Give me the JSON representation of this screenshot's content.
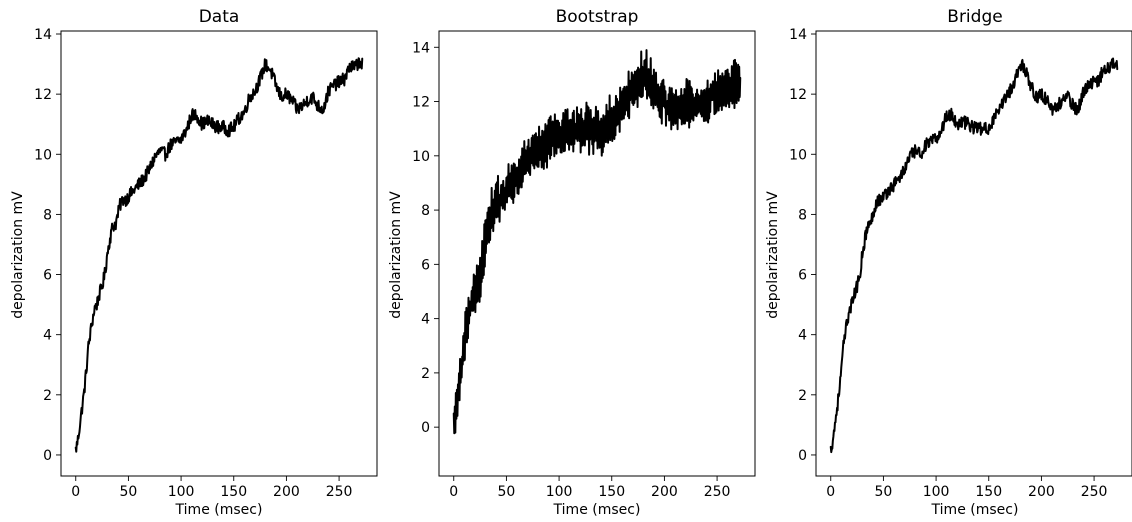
{
  "chart_data": [
    {
      "type": "line",
      "title": "Data",
      "xlabel": "Time (msec)",
      "ylabel": "depolarization mV",
      "xlim": [
        -14,
        286
      ],
      "ylim": [
        -0.7,
        14.1
      ],
      "xticks": [
        0,
        50,
        100,
        150,
        200,
        250
      ],
      "yticks": [
        0,
        2,
        4,
        6,
        8,
        10,
        12,
        14
      ],
      "grid": false,
      "color": "#000000",
      "noise": 0.22,
      "band": 0,
      "series": [
        {
          "x": [
            0,
            2,
            5,
            8,
            10,
            12,
            15,
            18,
            20,
            22,
            25,
            28,
            30,
            32,
            35,
            38,
            40,
            42,
            45,
            48,
            50,
            55,
            60,
            65,
            70,
            75,
            80,
            85,
            90,
            95,
            100,
            105,
            110,
            115,
            120,
            125,
            130,
            135,
            140,
            145,
            150,
            155,
            160,
            165,
            170,
            175,
            180,
            185,
            190,
            195,
            200,
            205,
            210,
            215,
            220,
            225,
            230,
            235,
            240,
            245,
            250,
            255,
            260,
            265,
            270,
            272
          ],
          "y": [
            0.15,
            0.5,
            1.3,
            2.1,
            2.8,
            3.6,
            4.3,
            4.9,
            5.0,
            5.3,
            5.6,
            6.1,
            6.7,
            7.1,
            7.6,
            7.7,
            8.0,
            8.3,
            8.5,
            8.5,
            8.6,
            8.8,
            9.0,
            9.2,
            9.5,
            9.9,
            10.1,
            10.0,
            10.3,
            10.4,
            10.5,
            10.8,
            11.3,
            11.3,
            11.0,
            11.1,
            11.0,
            10.9,
            10.9,
            10.8,
            10.9,
            11.2,
            11.4,
            11.9,
            12.1,
            12.5,
            13.0,
            12.8,
            12.3,
            11.9,
            12.0,
            11.8,
            11.5,
            11.6,
            11.8,
            11.9,
            11.6,
            11.5,
            12.1,
            12.3,
            12.4,
            12.5,
            12.9,
            12.9,
            13.1,
            13.0
          ]
        }
      ]
    },
    {
      "type": "line",
      "title": "Bootstrap",
      "xlabel": "Time (msec)",
      "ylabel": "depolarization mV",
      "xlim": [
        -14,
        286
      ],
      "ylim": [
        -1.8,
        14.6
      ],
      "xticks": [
        0,
        50,
        100,
        150,
        200,
        250
      ],
      "yticks": [
        0,
        2,
        4,
        6,
        8,
        10,
        12,
        14
      ],
      "grid": false,
      "color": "#000000",
      "noise": 0.3,
      "band": 0.75,
      "series": [
        {
          "x": [
            0,
            2,
            5,
            8,
            10,
            12,
            15,
            18,
            20,
            22,
            25,
            28,
            30,
            32,
            35,
            38,
            40,
            42,
            45,
            48,
            50,
            55,
            60,
            65,
            70,
            75,
            80,
            85,
            90,
            95,
            100,
            105,
            110,
            115,
            120,
            125,
            130,
            135,
            140,
            145,
            150,
            155,
            160,
            165,
            170,
            175,
            180,
            185,
            190,
            195,
            200,
            205,
            210,
            215,
            220,
            225,
            230,
            235,
            240,
            245,
            250,
            255,
            260,
            265,
            270,
            272
          ],
          "y": [
            0.0,
            0.6,
            1.5,
            2.3,
            3.0,
            3.6,
            4.3,
            4.8,
            5.0,
            5.3,
            5.7,
            6.2,
            6.8,
            7.3,
            7.8,
            8.0,
            8.2,
            8.4,
            8.5,
            8.6,
            8.7,
            8.9,
            9.2,
            9.5,
            9.8,
            10.1,
            10.2,
            10.2,
            10.5,
            10.7,
            10.8,
            10.9,
            11.0,
            11.1,
            11.0,
            11.1,
            11.0,
            11.0,
            11.0,
            11.2,
            11.3,
            11.5,
            11.9,
            12.2,
            12.5,
            12.7,
            13.0,
            12.8,
            12.4,
            12.1,
            12.0,
            11.9,
            11.7,
            11.8,
            11.9,
            11.9,
            11.9,
            11.8,
            12.0,
            12.1,
            12.2,
            12.3,
            12.5,
            12.6,
            12.8,
            12.8
          ]
        }
      ]
    },
    {
      "type": "line",
      "title": "Bridge",
      "xlabel": "Time (msec)",
      "ylabel": "depolarization mV",
      "xlim": [
        -14,
        286
      ],
      "ylim": [
        -0.7,
        14.1
      ],
      "xticks": [
        0,
        50,
        100,
        150,
        200,
        250
      ],
      "yticks": [
        0,
        2,
        4,
        6,
        8,
        10,
        12,
        14
      ],
      "grid": false,
      "color": "#000000",
      "noise": 0.22,
      "band": 0,
      "series": [
        {
          "x": [
            0,
            2,
            5,
            8,
            10,
            12,
            15,
            18,
            20,
            22,
            25,
            28,
            30,
            32,
            35,
            38,
            40,
            42,
            45,
            48,
            50,
            55,
            60,
            65,
            70,
            75,
            80,
            85,
            90,
            95,
            100,
            105,
            110,
            115,
            120,
            125,
            130,
            135,
            140,
            145,
            150,
            155,
            160,
            165,
            170,
            175,
            180,
            185,
            190,
            195,
            200,
            205,
            210,
            215,
            220,
            225,
            230,
            235,
            240,
            245,
            250,
            255,
            260,
            265,
            270,
            272
          ],
          "y": [
            0.15,
            0.5,
            1.3,
            2.1,
            2.8,
            3.6,
            4.3,
            4.9,
            5.0,
            5.3,
            5.6,
            6.1,
            6.7,
            7.1,
            7.6,
            7.7,
            8.0,
            8.3,
            8.5,
            8.5,
            8.6,
            8.8,
            9.0,
            9.2,
            9.5,
            9.9,
            10.1,
            10.0,
            10.3,
            10.4,
            10.5,
            10.8,
            11.3,
            11.3,
            11.0,
            11.1,
            11.0,
            10.9,
            10.9,
            10.8,
            10.9,
            11.2,
            11.4,
            11.9,
            12.1,
            12.5,
            13.0,
            12.8,
            12.3,
            11.9,
            12.0,
            11.8,
            11.5,
            11.6,
            11.8,
            11.9,
            11.6,
            11.5,
            12.1,
            12.3,
            12.4,
            12.5,
            12.9,
            12.9,
            13.1,
            13.0
          ]
        }
      ]
    }
  ]
}
